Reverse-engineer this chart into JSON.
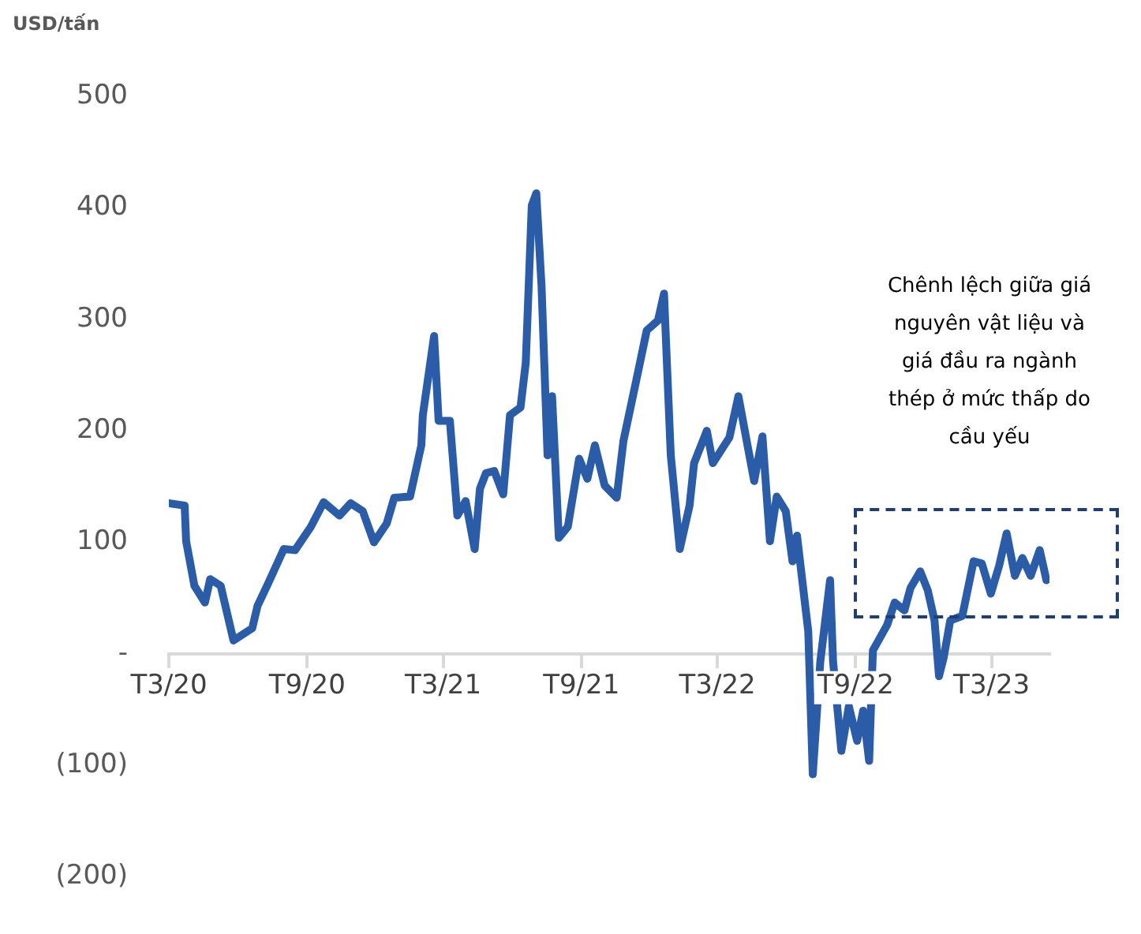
{
  "chart_data": {
    "type": "line",
    "ylabel": "USD/tấn",
    "color": "#2b5ca8",
    "legend": false,
    "grid": false,
    "marker": "none",
    "annotations": [
      "Chênh lệch giữa giá nguyên vật liệu và giá đầu ra ngành thép ở mức thấp do cầu yếu"
    ],
    "x": [
      "2020-03-01",
      "2020-03-22",
      "2020-03-24",
      "2020-04-04",
      "2020-04-18",
      "2020-04-25",
      "2020-05-09",
      "2020-05-26",
      "2020-06-20",
      "2020-06-27",
      "2020-07-11",
      "2020-08-01",
      "2020-08-16",
      "2020-09-06",
      "2020-09-23",
      "2020-10-14",
      "2020-10-29",
      "2020-11-14",
      "2020-11-29",
      "2020-12-16",
      "2020-12-26",
      "2021-01-16",
      "2021-01-31",
      "2021-02-02",
      "2021-02-17",
      "2021-02-23",
      "2021-03-10",
      "2021-03-20",
      "2021-03-31",
      "2021-04-12",
      "2021-04-19",
      "2021-04-27",
      "2021-05-08",
      "2021-05-20",
      "2021-05-29",
      "2021-06-12",
      "2021-06-19",
      "2021-06-27",
      "2021-07-03",
      "2021-07-10",
      "2021-07-18",
      "2021-07-24",
      "2021-08-02",
      "2021-08-14",
      "2021-08-29",
      "2021-09-09",
      "2021-09-19",
      "2021-10-02",
      "2021-10-18",
      "2021-10-27",
      "2021-11-13",
      "2021-11-27",
      "2021-12-12",
      "2021-12-20",
      "2021-12-29",
      "2022-01-10",
      "2022-01-23",
      "2022-01-29",
      "2022-02-15",
      "2022-02-23",
      "2022-03-17",
      "2022-03-29",
      "2022-04-09",
      "2022-04-19",
      "2022-04-30",
      "2022-05-10",
      "2022-05-19",
      "2022-05-31",
      "2022-06-09",
      "2022-06-15",
      "2022-06-30",
      "2022-07-06",
      "2022-07-16",
      "2022-07-29",
      "2022-08-02",
      "2022-08-13",
      "2022-08-23",
      "2022-09-03",
      "2022-09-11",
      "2022-09-19",
      "2022-09-24",
      "2022-10-13",
      "2022-10-23",
      "2022-11-05",
      "2022-11-13",
      "2022-11-26",
      "2022-12-06",
      "2022-12-15",
      "2022-12-21",
      "2022-12-27",
      "2023-01-05",
      "2023-01-21",
      "2023-02-05",
      "2023-02-16",
      "2023-02-28",
      "2023-03-11",
      "2023-03-21",
      "2023-04-01",
      "2023-04-11",
      "2023-04-22",
      "2023-05-04",
      "2023-05-13"
    ],
    "values": [
      135,
      133,
      101,
      61,
      46,
      67,
      61,
      12,
      23,
      43,
      63,
      94,
      93,
      114,
      136,
      124,
      135,
      128,
      100,
      117,
      140,
      141,
      187,
      214,
      285,
      209,
      209,
      124,
      137,
      94,
      148,
      162,
      164,
      143,
      214,
      221,
      261,
      402,
      413,
      330,
      178,
      231,
      104,
      114,
      175,
      157,
      187,
      151,
      140,
      191,
      245,
      290,
      299,
      323,
      178,
      94,
      133,
      171,
      200,
      171,
      194,
      231,
      191,
      155,
      195,
      101,
      141,
      128,
      83,
      106,
      20,
      -108,
      -7,
      66,
      -7,
      -87,
      -47,
      -78,
      -51,
      -96,
      3,
      26,
      46,
      39,
      59,
      74,
      57,
      30,
      -20,
      -4,
      30,
      34,
      83,
      81,
      54,
      79,
      108,
      70,
      86,
      70,
      93,
      66
    ],
    "xlim": [
      "2020-03-01",
      "2023-05-17"
    ],
    "xticks": [
      {
        "value": "2020-03-01",
        "label": "T3/20"
      },
      {
        "value": "2020-09-01",
        "label": "T9/20"
      },
      {
        "value": "2021-03-01",
        "label": "T3/21"
      },
      {
        "value": "2021-09-01",
        "label": "T9/21"
      },
      {
        "value": "2022-03-01",
        "label": "T3/22"
      },
      {
        "value": "2022-09-01",
        "label": "T9/22"
      },
      {
        "value": "2023-03-01",
        "label": "T3/23"
      }
    ],
    "ylim": [
      -200,
      500
    ],
    "yticks": [
      {
        "value": -200,
        "label": "(200)"
      },
      {
        "value": -100,
        "label": "(100)"
      },
      {
        "value": 0,
        "label": "-"
      },
      100,
      200,
      300,
      400,
      500
    ]
  }
}
